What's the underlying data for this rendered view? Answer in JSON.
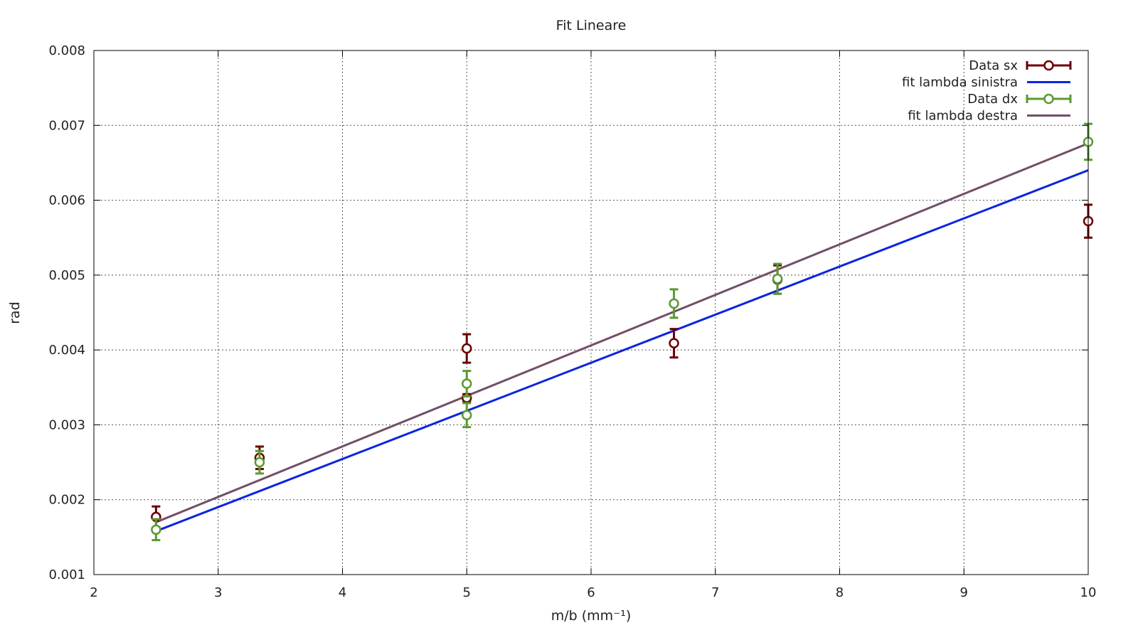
{
  "chart_data": {
    "type": "scatter",
    "title": "Fit Lineare",
    "xlabel": "m/b (mm⁻¹)",
    "ylabel": "rad",
    "xlim": [
      2,
      10
    ],
    "ylim": [
      0.001,
      0.008
    ],
    "x_ticks": [
      2,
      3,
      4,
      5,
      6,
      7,
      8,
      9,
      10
    ],
    "x_tick_labels": [
      "2",
      "3",
      "4",
      "5",
      "6",
      "7",
      "8",
      "9",
      "10"
    ],
    "y_ticks": [
      0.001,
      0.002,
      0.003,
      0.004,
      0.005,
      0.006,
      0.007,
      0.008
    ],
    "y_tick_labels": [
      "0.001",
      "0.002",
      "0.003",
      "0.004",
      "0.005",
      "0.006",
      "0.007",
      "0.008"
    ],
    "grid": true,
    "legend_position": "top-right",
    "series": [
      {
        "name": "Data sx",
        "kind": "errorbar",
        "color": "#6b0000",
        "points": [
          {
            "x": 2.5,
            "y": 0.00177,
            "err": 0.00014
          },
          {
            "x": 3.333,
            "y": 0.00256,
            "err": 0.00015
          },
          {
            "x": 5.0,
            "y": 0.00402,
            "err": 0.00019
          },
          {
            "x": 5.0,
            "y": 0.00336,
            "err": 5e-05
          },
          {
            "x": 6.667,
            "y": 0.00409,
            "err": 0.00019
          },
          {
            "x": 7.5,
            "y": 0.00494,
            "err": 0.00019
          },
          {
            "x": 10.0,
            "y": 0.00572,
            "err": 0.00022
          }
        ]
      },
      {
        "name": "fit lambda sinistra",
        "kind": "line",
        "color": "#0b24e0",
        "x": [
          2.5,
          10.0
        ],
        "y": [
          0.00158,
          0.0064
        ]
      },
      {
        "name": "Data dx",
        "kind": "errorbar",
        "color": "#5a9a32",
        "points": [
          {
            "x": 2.5,
            "y": 0.0016,
            "err": 0.00014
          },
          {
            "x": 3.333,
            "y": 0.0025,
            "err": 0.00015
          },
          {
            "x": 5.0,
            "y": 0.00355,
            "err": 0.00017
          },
          {
            "x": 5.0,
            "y": 0.00313,
            "err": 0.00016
          },
          {
            "x": 6.667,
            "y": 0.00462,
            "err": 0.00019
          },
          {
            "x": 7.5,
            "y": 0.00495,
            "err": 0.0002
          },
          {
            "x": 10.0,
            "y": 0.00678,
            "err": 0.00024
          }
        ]
      },
      {
        "name": "fit lambda destra",
        "kind": "line",
        "color": "#724f68",
        "x": [
          2.5,
          10.0
        ],
        "y": [
          0.0017,
          0.00676
        ]
      }
    ]
  }
}
